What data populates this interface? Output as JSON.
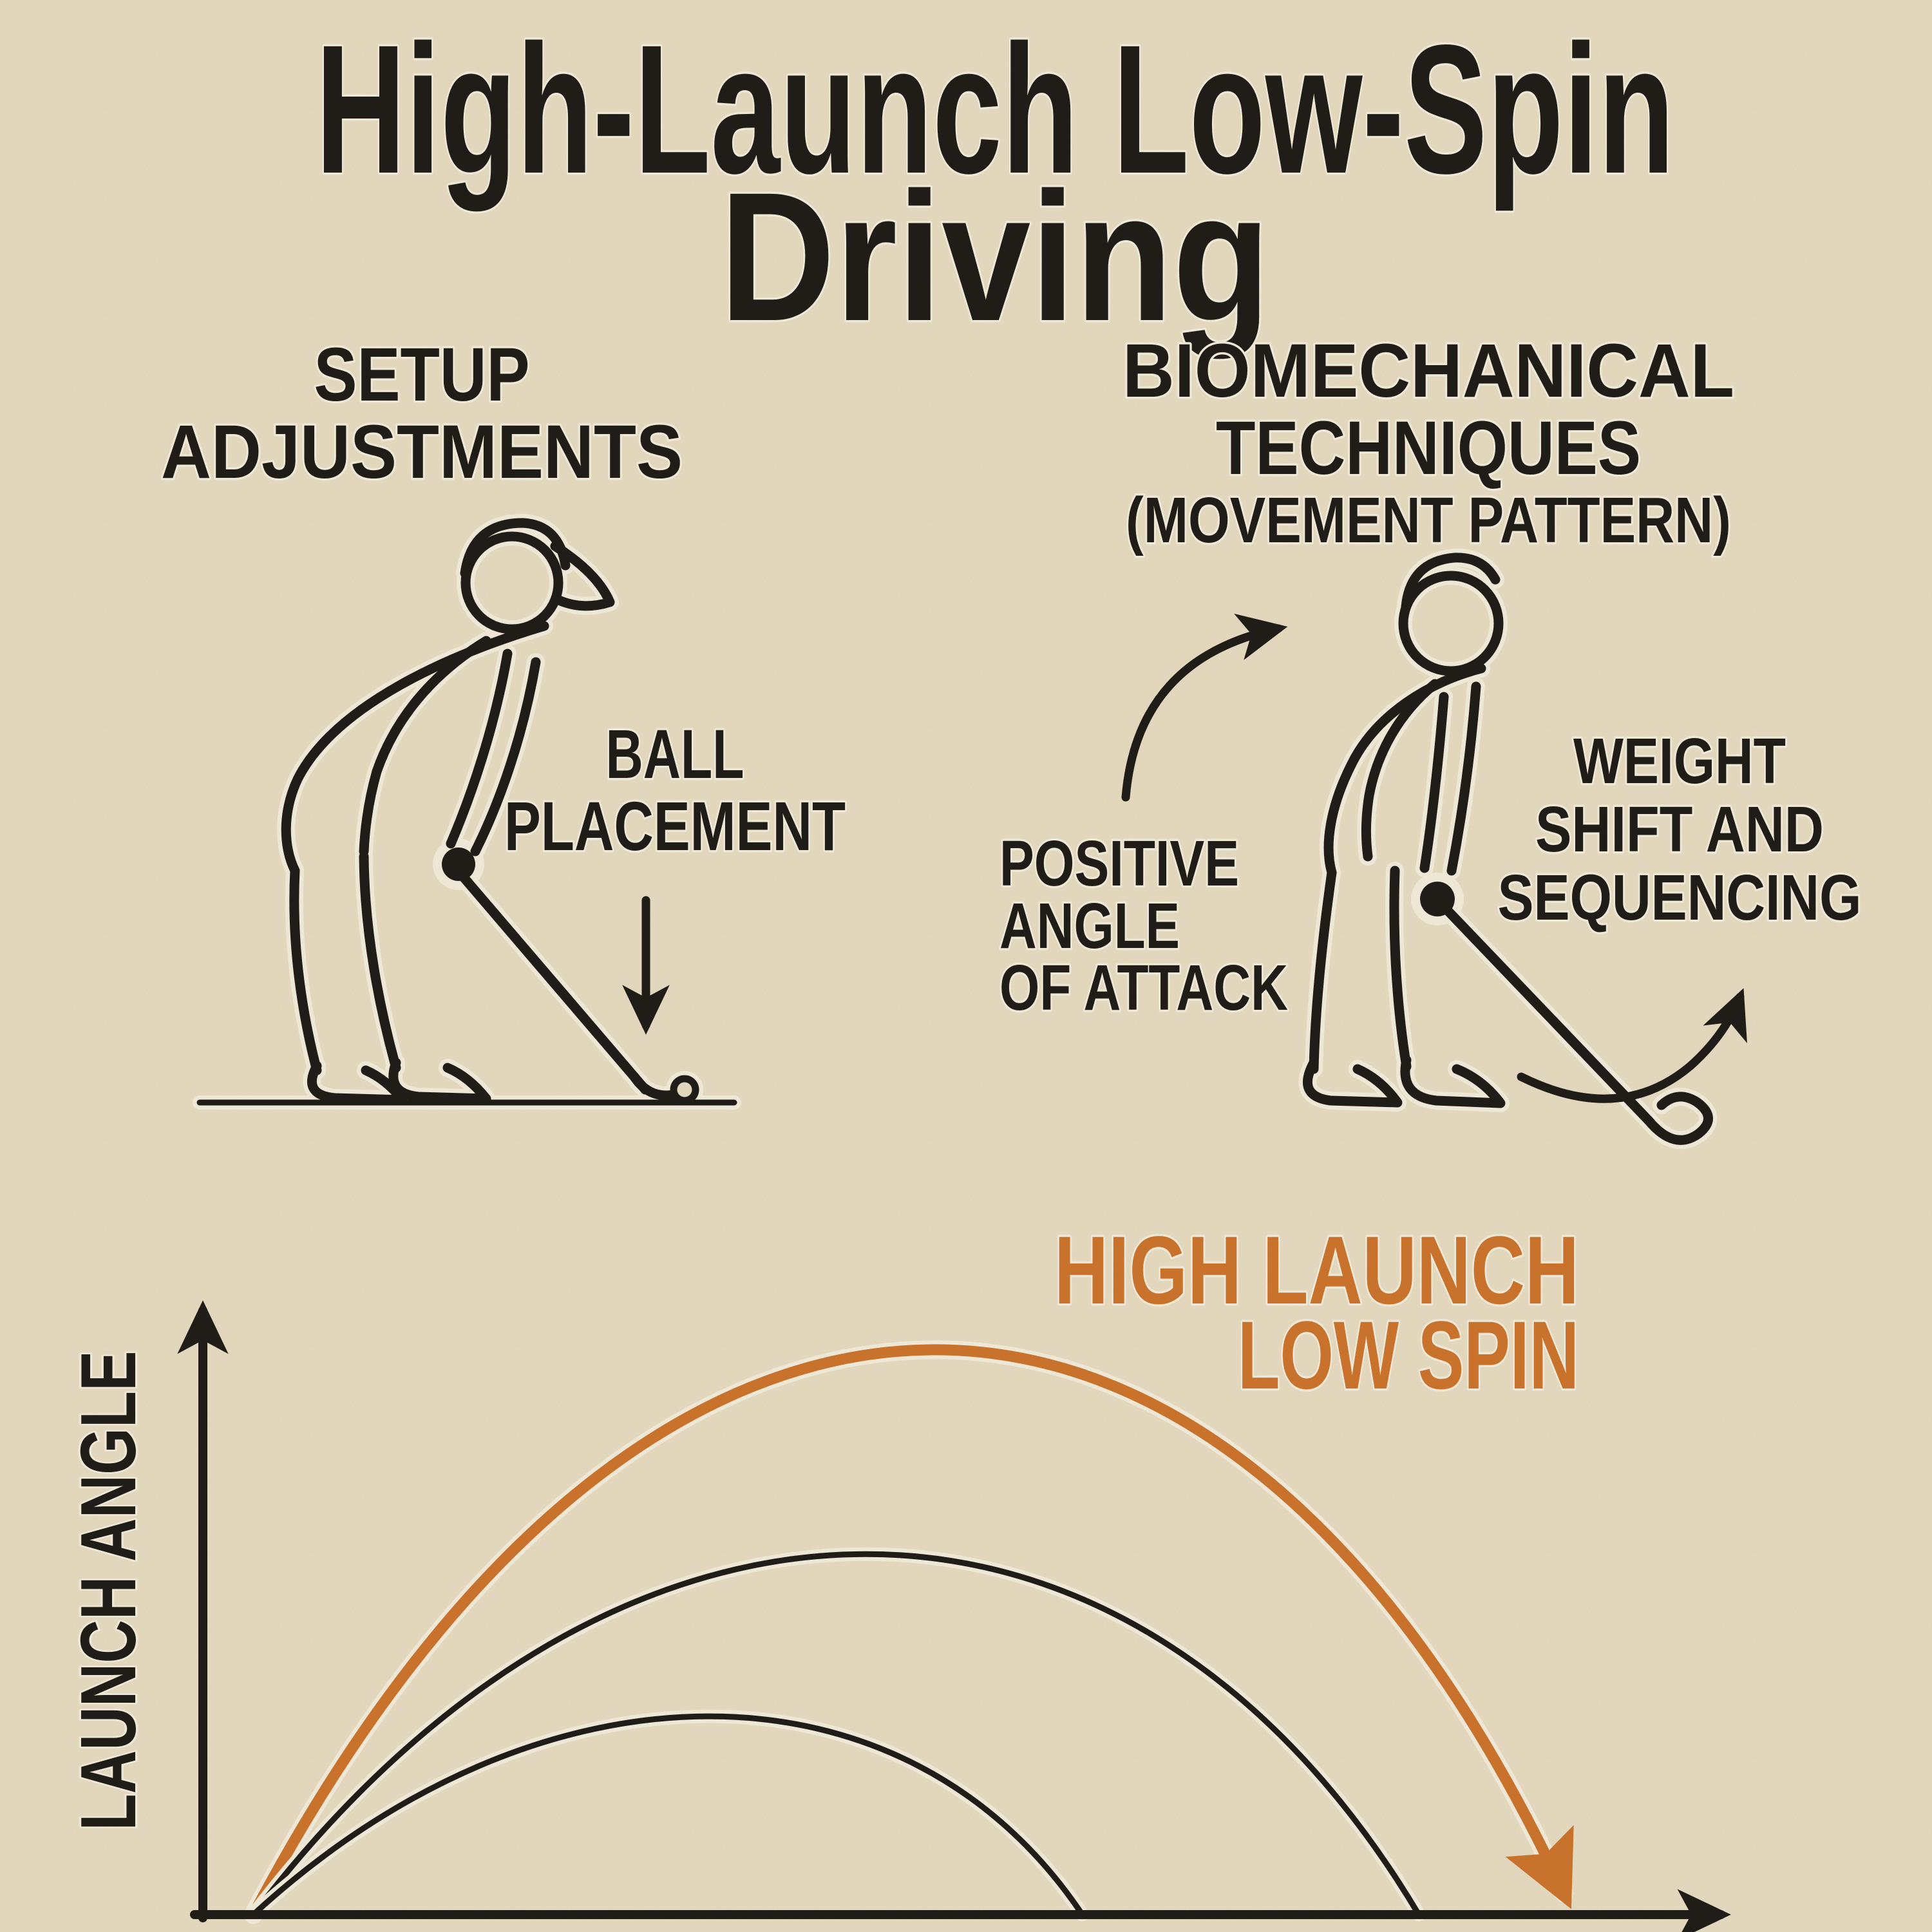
{
  "colors": {
    "background": "#EEE2C6",
    "ink": "#221F1A",
    "accent": "#D2782F",
    "halo": "#FAF3E0"
  },
  "title": {
    "line1": "High-Launch Low-Spin",
    "line2": "Driving"
  },
  "setup_section": {
    "heading_line1": "SETUP",
    "heading_line2": "ADJUSTMENTS",
    "ball_placement_line1": "BALL",
    "ball_placement_line2": "PLACEMENT"
  },
  "biomech_section": {
    "heading_line1": "BIOMECHANICAL",
    "heading_line2": "TECHNIQUES",
    "heading_line3": "(MOVEMENT PATTERN)",
    "positive_angle_line1": "POSITIVE",
    "positive_angle_line2": "ANGLE",
    "positive_angle_line3": "OF ATTACK",
    "weight_shift_line1": "WEIGHT",
    "weight_shift_line2": "SHIFT AND",
    "weight_shift_line3": "SEQUENCING"
  },
  "chart_data": {
    "type": "line",
    "title": "",
    "xlabel": "",
    "ylabel": "LAUNCH ANGLE",
    "grid": false,
    "axis_ticks": "none",
    "x_range_normalized": [
      0,
      1
    ],
    "y_range_normalized": [
      0,
      1
    ],
    "annotation": {
      "line1": "HIGH LAUNCH",
      "line2": "LOW SPIN",
      "color": "#D2782F",
      "position": "upper-right"
    },
    "series": [
      {
        "name": "high launch low spin trajectory",
        "color": "#D2782F",
        "stroke_width": 17,
        "arrow_end": true,
        "start": [
          0.033,
          0
        ],
        "peak": [
          0.48,
          0.94
        ],
        "end": [
          0.89,
          0.035
        ]
      },
      {
        "name": "medium launch trajectory",
        "color": "#221F1A",
        "stroke_width": 9,
        "arrow_end": false,
        "start": [
          0.033,
          0
        ],
        "peak": [
          0.44,
          0.6
        ],
        "end": [
          0.795,
          0
        ]
      },
      {
        "name": "low launch trajectory",
        "color": "#221F1A",
        "stroke_width": 9,
        "arrow_end": false,
        "start": [
          0.033,
          0
        ],
        "peak": [
          0.34,
          0.33
        ],
        "end": [
          0.575,
          0
        ]
      }
    ]
  }
}
